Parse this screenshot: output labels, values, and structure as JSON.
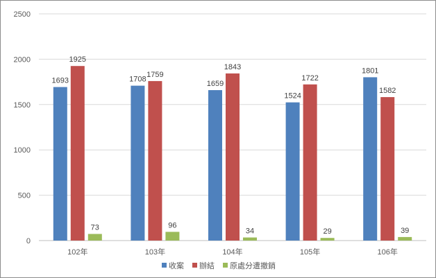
{
  "chart_data": {
    "type": "bar",
    "categories": [
      "102年",
      "103年",
      "104年",
      "105年",
      "106年"
    ],
    "series": [
      {
        "name": "收案",
        "color": "#4f81bd",
        "values": [
          1693,
          1708,
          1659,
          1524,
          1801
        ]
      },
      {
        "name": "辦結",
        "color": "#c0504d",
        "values": [
          1925,
          1759,
          1843,
          1722,
          1582
        ]
      },
      {
        "name": "原處分遭撤銷",
        "color": "#9bbb59",
        "values": [
          73,
          96,
          34,
          29,
          39
        ]
      }
    ],
    "ylim": [
      0,
      2500
    ],
    "yticks": [
      "0",
      "500",
      "1000",
      "1500",
      "2000",
      "2500"
    ],
    "grid": true,
    "legend": "bottom"
  }
}
